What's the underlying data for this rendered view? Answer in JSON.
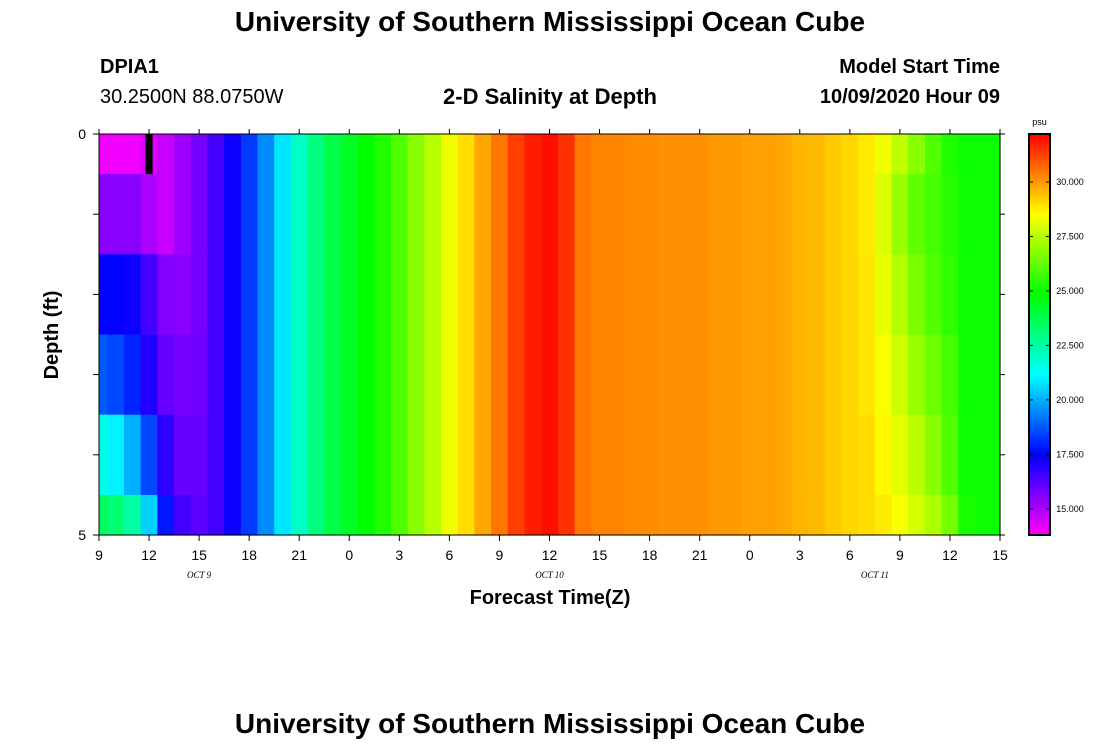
{
  "page": {
    "title_top": "University of Southern Mississippi Ocean Cube",
    "title_bottom": "University of Southern Mississippi Ocean Cube",
    "station_id": "DPIA1",
    "station_coords": "30.2500N 88.0750W",
    "plot_title": "2-D Salinity at Depth",
    "model_start_label": "Model Start Time",
    "model_start_value": "10/09/2020 Hour 09"
  },
  "chart_data": {
    "type": "heatmap",
    "title": "2-D Salinity at Depth",
    "xlabel": "Forecast Time(Z)",
    "ylabel": "Depth (ft)",
    "x_tick_labels": [
      "9",
      "12",
      "15",
      "18",
      "21",
      "0",
      "3",
      "6",
      "9",
      "12",
      "15",
      "18",
      "21",
      "0",
      "3",
      "6",
      "9",
      "12",
      "15"
    ],
    "x_day_labels": [
      {
        "label": "OCT 9",
        "at_hours": 6
      },
      {
        "label": "OCT 10",
        "at_hours": 27
      },
      {
        "label": "OCT 11",
        "at_hours": 46.5
      }
    ],
    "x_range_hours": [
      0,
      54
    ],
    "y_tick_labels": [
      "0",
      "5"
    ],
    "ylim": [
      0,
      5
    ],
    "colorbar": {
      "unit": "psu",
      "tick_labels": [
        "15.000",
        "17.500",
        "20.000",
        "22.500",
        "25.000",
        "27.500",
        "30.000"
      ],
      "tick_values": [
        15,
        17.5,
        20,
        22.5,
        25,
        27.5,
        30
      ],
      "range": [
        13.8,
        32.2
      ]
    },
    "time_hours": [
      0,
      1,
      2,
      3,
      4,
      5,
      6,
      7,
      8,
      9,
      10,
      11,
      12,
      13,
      14,
      15,
      16,
      17,
      18,
      19,
      20,
      21,
      22,
      23,
      24,
      25,
      26,
      27,
      28,
      29,
      30,
      31,
      32,
      33,
      34,
      35,
      36,
      37,
      38,
      39,
      40,
      41,
      42,
      43,
      44,
      45,
      46,
      47,
      48,
      49,
      50,
      51,
      52,
      53,
      54
    ],
    "depth_bands_ft": [
      [
        0,
        0.5
      ],
      [
        0.5,
        1.5
      ],
      [
        1.5,
        2.5
      ],
      [
        2.5,
        3.5
      ],
      [
        3.5,
        4.5
      ],
      [
        4.5,
        5
      ]
    ],
    "salinity_by_band": [
      [
        14.0,
        14.0,
        14.0,
        14.3,
        14.6,
        15.2,
        15.8,
        16.5,
        17.3,
        18.3,
        19.5,
        20.8,
        22.0,
        23.0,
        23.8,
        24.3,
        24.8,
        25.3,
        26.0,
        26.8,
        27.5,
        28.3,
        29.0,
        29.8,
        30.5,
        31.3,
        31.8,
        32.0,
        31.5,
        30.5,
        30.3,
        30.3,
        30.2,
        30.2,
        30.1,
        30.1,
        30.1,
        30.0,
        30.0,
        29.9,
        29.9,
        29.8,
        29.6,
        29.5,
        29.3,
        29.1,
        28.8,
        28.3,
        27.6,
        26.8,
        26.0,
        25.3,
        25.0,
        25.0,
        25.0
      ],
      [
        15.5,
        15.5,
        15.5,
        15.0,
        14.6,
        15.2,
        15.8,
        16.5,
        17.3,
        18.3,
        19.5,
        20.8,
        22.0,
        23.0,
        23.8,
        24.3,
        24.8,
        25.3,
        26.0,
        26.8,
        27.5,
        28.3,
        29.0,
        29.8,
        30.5,
        31.3,
        31.8,
        32.0,
        31.5,
        30.5,
        30.3,
        30.3,
        30.2,
        30.2,
        30.1,
        30.1,
        30.1,
        30.0,
        30.0,
        29.9,
        29.9,
        29.8,
        29.6,
        29.5,
        29.3,
        29.1,
        28.8,
        28.0,
        27.0,
        26.2,
        25.8,
        25.4,
        25.0,
        25.0,
        25.0
      ],
      [
        17.5,
        17.5,
        17.3,
        16.5,
        15.6,
        15.5,
        15.8,
        16.5,
        17.3,
        18.3,
        19.5,
        20.8,
        22.0,
        23.0,
        23.8,
        24.3,
        24.8,
        25.3,
        26.0,
        26.8,
        27.5,
        28.3,
        29.0,
        29.8,
        30.5,
        31.3,
        31.8,
        32.0,
        31.5,
        30.5,
        30.3,
        30.3,
        30.2,
        30.2,
        30.1,
        30.1,
        30.1,
        30.0,
        30.0,
        29.9,
        29.9,
        29.8,
        29.6,
        29.5,
        29.3,
        29.1,
        28.9,
        28.2,
        27.4,
        26.6,
        26.0,
        25.5,
        25.0,
        25.0,
        25.0
      ],
      [
        18.8,
        18.5,
        18.0,
        17.0,
        16.0,
        15.8,
        15.9,
        16.5,
        17.3,
        18.3,
        19.5,
        20.8,
        22.0,
        23.0,
        23.8,
        24.3,
        24.8,
        25.3,
        26.0,
        26.8,
        27.5,
        28.3,
        29.0,
        29.8,
        30.5,
        31.3,
        31.8,
        32.0,
        31.5,
        30.5,
        30.3,
        30.3,
        30.2,
        30.2,
        30.1,
        30.1,
        30.1,
        30.0,
        30.0,
        29.9,
        29.9,
        29.8,
        29.6,
        29.5,
        29.3,
        29.1,
        28.9,
        28.4,
        27.8,
        27.0,
        26.4,
        25.8,
        25.0,
        25.0,
        25.0
      ],
      [
        21.5,
        21.0,
        20.0,
        18.5,
        16.8,
        16.0,
        16.0,
        16.5,
        17.3,
        18.3,
        19.5,
        20.8,
        22.0,
        23.0,
        23.8,
        24.3,
        24.8,
        25.3,
        26.0,
        26.8,
        27.5,
        28.3,
        29.0,
        29.8,
        30.5,
        31.3,
        31.8,
        32.0,
        31.5,
        30.5,
        30.3,
        30.3,
        30.2,
        30.2,
        30.1,
        30.1,
        30.1,
        30.0,
        30.0,
        29.9,
        29.9,
        29.8,
        29.6,
        29.5,
        29.3,
        29.1,
        29.0,
        28.6,
        28.1,
        27.5,
        26.8,
        26.0,
        25.0,
        25.0,
        25.0
      ],
      [
        23.5,
        23.2,
        22.5,
        20.5,
        17.8,
        16.5,
        16.2,
        16.5,
        17.3,
        18.3,
        19.5,
        20.8,
        22.0,
        23.0,
        23.8,
        24.3,
        24.8,
        25.3,
        26.0,
        26.8,
        27.5,
        28.3,
        29.0,
        29.8,
        30.5,
        31.3,
        31.8,
        32.0,
        31.5,
        30.5,
        30.3,
        30.3,
        30.2,
        30.2,
        30.1,
        30.1,
        30.1,
        30.0,
        30.0,
        29.9,
        29.9,
        29.8,
        29.6,
        29.5,
        29.3,
        29.1,
        29.0,
        28.8,
        28.4,
        27.9,
        27.3,
        26.5,
        25.2,
        25.0,
        25.0
      ]
    ],
    "current_time_marker_hours": 3
  }
}
